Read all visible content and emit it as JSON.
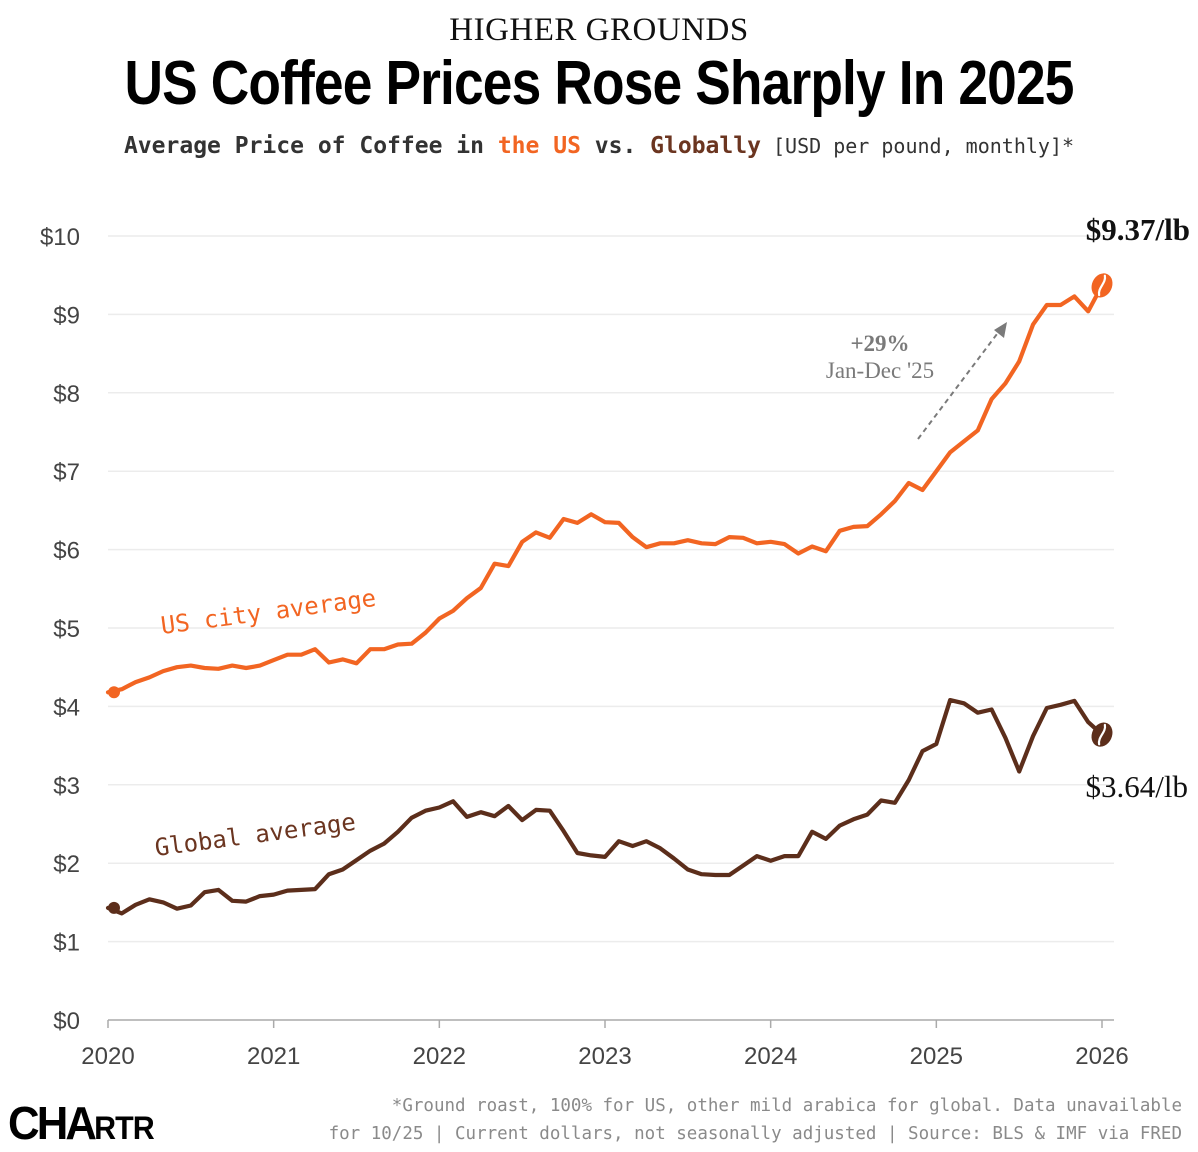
{
  "header": {
    "kicker": "HIGHER GROUNDS",
    "title": "US Coffee Prices Rose Sharply In 2025",
    "subtitle_prefix": "Average Price of Coffee in ",
    "subtitle_us": "the US",
    "subtitle_mid": " vs. ",
    "subtitle_global": "Globally",
    "subtitle_unit": " [USD per pound, monthly]*"
  },
  "colors": {
    "us": "#f26522",
    "global": "#5c2e1b",
    "grid": "#ececec",
    "annotation": "#7a7a7a"
  },
  "chart_data": {
    "type": "line",
    "ylim": [
      0,
      10
    ],
    "xlim": [
      2020,
      2026
    ],
    "y_ticks": [
      {
        "value": 0,
        "label": "$0"
      },
      {
        "value": 1,
        "label": "$1"
      },
      {
        "value": 2,
        "label": "$2"
      },
      {
        "value": 3,
        "label": "$3"
      },
      {
        "value": 4,
        "label": "$4"
      },
      {
        "value": 5,
        "label": "$5"
      },
      {
        "value": 6,
        "label": "$6"
      },
      {
        "value": 7,
        "label": "$7"
      },
      {
        "value": 8,
        "label": "$8"
      },
      {
        "value": 9,
        "label": "$9"
      },
      {
        "value": 10,
        "label": "$10"
      }
    ],
    "x_ticks": [
      {
        "value": 2020,
        "label": "2020"
      },
      {
        "value": 2021,
        "label": "2021"
      },
      {
        "value": 2022,
        "label": "2022"
      },
      {
        "value": 2023,
        "label": "2023"
      },
      {
        "value": 2024,
        "label": "2024"
      },
      {
        "value": 2025,
        "label": "2025"
      },
      {
        "value": 2026,
        "label": "2026"
      }
    ],
    "grid": true,
    "series": [
      {
        "name": "US city average",
        "start": "2020-01",
        "values": [
          4.18,
          4.22,
          4.31,
          4.37,
          4.45,
          4.5,
          4.52,
          4.49,
          4.48,
          4.52,
          4.49,
          4.52,
          4.59,
          4.66,
          4.66,
          4.73,
          4.56,
          4.6,
          4.55,
          4.73,
          4.73,
          4.79,
          4.8,
          4.94,
          5.12,
          5.22,
          5.38,
          5.51,
          5.82,
          5.79,
          6.1,
          6.22,
          6.15,
          6.39,
          6.34,
          6.45,
          6.35,
          6.34,
          6.16,
          6.03,
          6.08,
          6.08,
          6.12,
          6.08,
          6.07,
          6.16,
          6.15,
          6.08,
          6.1,
          6.07,
          5.95,
          6.04,
          5.98,
          6.24,
          6.29,
          6.3,
          6.45,
          6.62,
          6.85,
          6.76,
          7.0,
          7.24,
          7.38,
          7.52,
          7.92,
          8.12,
          8.4,
          8.87,
          9.12,
          9.12,
          9.23,
          9.04,
          9.37
        ],
        "end_label": "$9.37/lb"
      },
      {
        "name": "Global average",
        "start": "2020-01",
        "values": [
          1.43,
          1.36,
          1.47,
          1.54,
          1.5,
          1.42,
          1.46,
          1.63,
          1.66,
          1.52,
          1.51,
          1.58,
          1.6,
          1.65,
          1.66,
          1.67,
          1.86,
          1.92,
          2.04,
          2.16,
          2.25,
          2.4,
          2.58,
          2.67,
          2.71,
          2.79,
          2.59,
          2.65,
          2.6,
          2.73,
          2.55,
          2.68,
          2.67,
          2.41,
          2.13,
          2.1,
          2.08,
          2.28,
          2.22,
          2.28,
          2.19,
          2.06,
          1.92,
          1.86,
          1.85,
          1.85,
          1.97,
          2.09,
          2.03,
          2.09,
          2.09,
          2.4,
          2.31,
          2.48,
          2.56,
          2.62,
          2.8,
          2.77,
          3.06,
          3.43,
          3.52,
          4.08,
          4.04,
          3.92,
          3.96,
          3.6,
          3.17,
          3.62,
          3.98,
          4.02,
          4.07,
          3.8,
          3.64
        ],
        "end_label": "$3.64/lb"
      }
    ],
    "annotation": {
      "line1": "+29%",
      "line2": "Jan-Dec '25"
    }
  },
  "footnote": {
    "line1": "*Ground roast, 100% for US, other mild arabica for global. Data unavailable",
    "line2": "for 10/25 | Current dollars, not seasonally adjusted | Source: BLS & IMF via FRED"
  },
  "logo": {
    "big": "CHA",
    "small": "RTR"
  }
}
